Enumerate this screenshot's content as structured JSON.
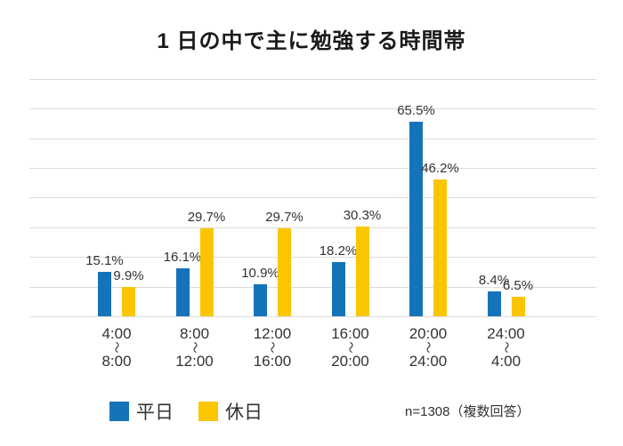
{
  "title": "1 日の中で主に勉強する時間帯",
  "note": "n=1308（複数回答）",
  "colors": {
    "weekday": "#1573ba",
    "holiday": "#fbc600",
    "gridline": "#dcdcdc",
    "text": "#333333",
    "title_text": "#1a1a1a",
    "background": "#ffffff"
  },
  "chart_data": {
    "type": "bar",
    "title": "1 日の中で主に勉強する時間帯",
    "categories": [
      {
        "from": "4:00",
        "to": "8:00"
      },
      {
        "from": "8:00",
        "to": "12:00"
      },
      {
        "from": "12:00",
        "to": "16:00"
      },
      {
        "from": "16:00",
        "to": "20:00"
      },
      {
        "from": "20:00",
        "to": "24:00"
      },
      {
        "from": "24:00",
        "to": "4:00"
      }
    ],
    "range_separator": "〜",
    "series": [
      {
        "key": "weekday",
        "name": "平日",
        "color": "#1573ba",
        "values": [
          15.1,
          16.1,
          10.9,
          18.2,
          65.5,
          8.4
        ]
      },
      {
        "key": "holiday",
        "name": "休日",
        "color": "#fbc600",
        "values": [
          9.9,
          29.7,
          29.7,
          30.3,
          46.2,
          6.5
        ]
      }
    ],
    "value_suffix": "%",
    "data_labels": true,
    "xlabel": "",
    "ylabel": "",
    "ylim": [
      0,
      80
    ],
    "grid": true,
    "grid_step": 10,
    "gridline_color": "#dcdcdc",
    "legend_position": "bottom",
    "note": "n=1308（複数回答）"
  }
}
